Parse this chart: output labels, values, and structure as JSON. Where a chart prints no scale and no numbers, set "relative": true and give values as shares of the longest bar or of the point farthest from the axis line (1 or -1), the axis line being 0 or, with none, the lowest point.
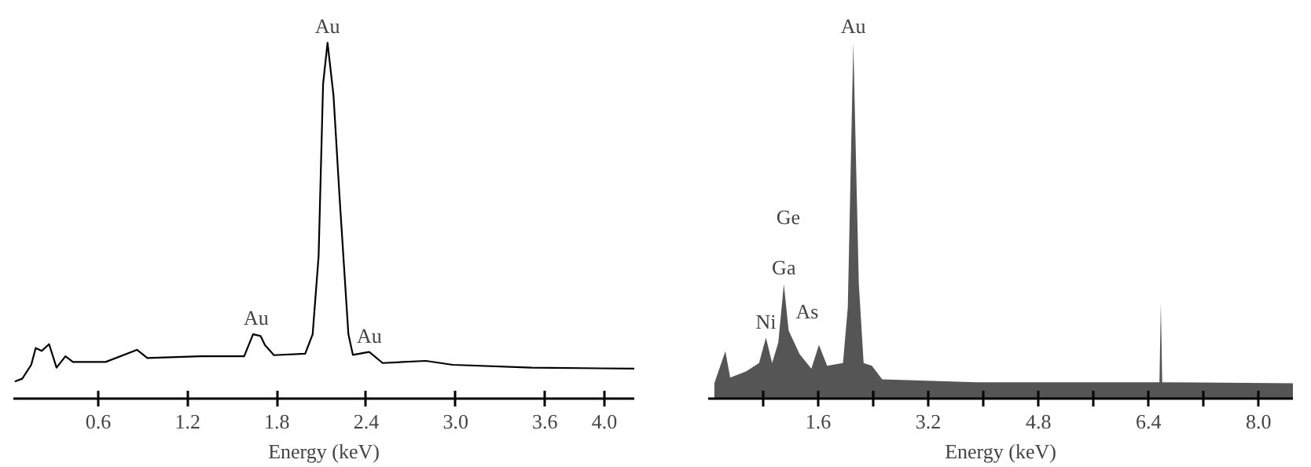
{
  "chart_data": [
    {
      "type": "line",
      "relative": true,
      "xlabel": "Energy (keV)",
      "tick_labels": "x",
      "grid": false,
      "marker": "none",
      "line_style": "solid",
      "xlim": [
        0.03,
        4.2
      ],
      "xticks": [
        0.6,
        1.2,
        1.8,
        2.4,
        {
          "value": 3.0,
          "label": "3.0"
        },
        3.6,
        {
          "value": 4.0,
          "label": "4.0"
        }
      ],
      "series": [
        {
          "color": "#000000",
          "x": [
            0.04,
            0.09,
            0.15,
            0.18,
            0.22,
            0.27,
            0.32,
            0.38,
            0.43,
            0.65,
            0.86,
            0.93,
            1.29,
            1.58,
            1.64,
            1.69,
            1.72,
            1.78,
            1.99,
            2.04,
            2.08,
            2.11,
            2.14,
            2.18,
            2.22,
            2.28,
            2.31,
            2.42,
            2.51,
            2.8,
            2.98,
            3.51,
            4.2
          ],
          "values": [
            0.048,
            0.056,
            0.095,
            0.142,
            0.134,
            0.153,
            0.087,
            0.119,
            0.103,
            0.103,
            0.137,
            0.114,
            0.119,
            0.119,
            0.181,
            0.176,
            0.15,
            0.122,
            0.126,
            0.181,
            0.4,
            0.883,
            1.0,
            0.852,
            0.571,
            0.181,
            0.123,
            0.131,
            0.1,
            0.106,
            0.095,
            0.087,
            0.084
          ]
        }
      ],
      "annotations": [
        {
          "text": "Au",
          "x": 2.14,
          "y": 1.0
        },
        {
          "text": "Au",
          "x": 1.66,
          "y": 0.181
        },
        {
          "text": "Au",
          "x": 2.42,
          "y": 0.131
        }
      ]
    },
    {
      "type": "area",
      "relative": true,
      "xlabel": "Energy (keV)",
      "tick_labels": "x",
      "grid": false,
      "xlim": [
        0.0,
        8.5
      ],
      "xticks": [
        {
          "value": 0.8,
          "label": null
        },
        1.6,
        {
          "value": 2.4,
          "label": null
        },
        3.2,
        {
          "value": 4.0,
          "label": null
        },
        4.8,
        {
          "value": 5.6,
          "label": null
        },
        6.4,
        {
          "value": 7.2,
          "label": null
        },
        {
          "value": 8.0,
          "label": "8.0"
        }
      ],
      "series": [
        {
          "color": "#555555",
          "x": [
            0.09,
            0.25,
            0.32,
            0.55,
            0.74,
            0.84,
            0.93,
            1.02,
            1.1,
            1.17,
            1.33,
            1.5,
            1.61,
            1.73,
            1.96,
            2.03,
            2.11,
            2.19,
            2.26,
            2.38,
            2.53,
            3.9,
            6.56,
            6.58,
            6.6,
            8.5
          ],
          "values": [
            0.043,
            0.133,
            0.059,
            0.076,
            0.1,
            0.171,
            0.1,
            0.158,
            0.322,
            0.191,
            0.125,
            0.084,
            0.151,
            0.092,
            0.1,
            0.257,
            1.0,
            0.322,
            0.1,
            0.092,
            0.054,
            0.046,
            0.046,
            0.268,
            0.046,
            0.043
          ]
        }
      ],
      "annotations": [
        {
          "text": "Au",
          "x": 2.11,
          "y": 1.0
        },
        "Ge",
        {
          "text": "Ga",
          "x": 1.1,
          "y": 0.322
        },
        {
          "text": "Ni",
          "x": 0.84,
          "y": 0.171
        },
        "As"
      ]
    }
  ]
}
